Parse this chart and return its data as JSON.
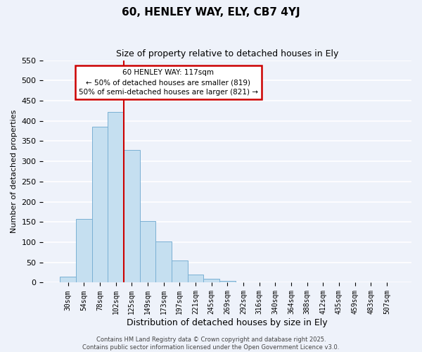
{
  "title": "60, HENLEY WAY, ELY, CB7 4YJ",
  "subtitle": "Size of property relative to detached houses in Ely",
  "xlabel": "Distribution of detached houses by size in Ely",
  "ylabel": "Number of detached properties",
  "bar_labels": [
    "30sqm",
    "54sqm",
    "78sqm",
    "102sqm",
    "125sqm",
    "149sqm",
    "173sqm",
    "197sqm",
    "221sqm",
    "245sqm",
    "269sqm",
    "292sqm",
    "316sqm",
    "340sqm",
    "364sqm",
    "388sqm",
    "412sqm",
    "435sqm",
    "459sqm",
    "483sqm",
    "507sqm"
  ],
  "bar_values": [
    15,
    157,
    385,
    423,
    328,
    153,
    101,
    55,
    20,
    10,
    5,
    1,
    0,
    0,
    0,
    0,
    0,
    0,
    0,
    0,
    0
  ],
  "bar_color": "#c5dff0",
  "bar_edge_color": "#7ab0d4",
  "background_color": "#eef2fa",
  "grid_color": "#ffffff",
  "ylim": [
    0,
    550
  ],
  "yticks": [
    0,
    50,
    100,
    150,
    200,
    250,
    300,
    350,
    400,
    450,
    500,
    550
  ],
  "vline_color": "#cc0000",
  "annotation_title": "60 HENLEY WAY: 117sqm",
  "annotation_line1": "← 50% of detached houses are smaller (819)",
  "annotation_line2": "50% of semi-detached houses are larger (821) →",
  "annotation_box_color": "#ffffff",
  "annotation_box_edge": "#cc0000",
  "footer1": "Contains HM Land Registry data © Crown copyright and database right 2025.",
  "footer2": "Contains public sector information licensed under the Open Government Licence v3.0."
}
